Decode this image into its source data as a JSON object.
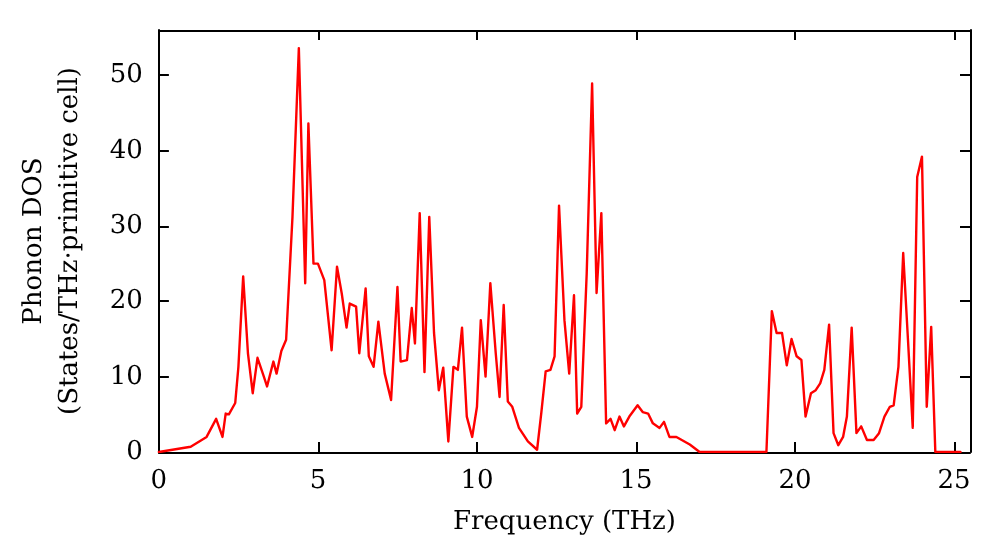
{
  "chart_data": {
    "type": "line",
    "xlabel": "Frequency (THz)",
    "ylabel": "Phonon DOS\n(States/THz·primitive cell)",
    "xlim": [
      0,
      25.5
    ],
    "xticks": [
      0,
      5,
      10,
      15,
      20,
      25
    ],
    "ylim": [
      0,
      56
    ],
    "yticks": [
      0,
      10,
      20,
      30,
      40,
      50
    ],
    "grid": false,
    "marker": "none",
    "line_style": "solid",
    "series": [
      {
        "color": "#ff0000",
        "x": [
          0,
          1.0,
          1.5,
          1.8,
          2.0,
          2.1,
          2.2,
          2.4,
          2.5,
          2.65,
          2.8,
          2.95,
          3.1,
          3.3,
          3.4,
          3.6,
          3.7,
          3.85,
          4.0,
          4.2,
          4.4,
          4.6,
          4.7,
          4.86,
          5.0,
          5.2,
          5.43,
          5.6,
          5.75,
          5.9,
          6.0,
          6.2,
          6.3,
          6.5,
          6.6,
          6.75,
          6.9,
          7.1,
          7.3,
          7.5,
          7.6,
          7.8,
          7.95,
          8.05,
          8.2,
          8.35,
          8.5,
          8.65,
          8.8,
          8.94,
          9.1,
          9.26,
          9.4,
          9.53,
          9.68,
          9.85,
          10.0,
          10.12,
          10.27,
          10.42,
          10.59,
          10.71,
          10.84,
          10.97,
          11.11,
          11.32,
          11.6,
          11.89,
          12.02,
          12.16,
          12.31,
          12.44,
          12.58,
          12.75,
          12.9,
          13.05,
          13.15,
          13.28,
          13.45,
          13.62,
          13.76,
          13.91,
          14.06,
          14.2,
          14.33,
          14.48,
          14.62,
          14.79,
          15.05,
          15.21,
          15.38,
          15.53,
          15.74,
          15.88,
          16.05,
          16.27,
          16.69,
          17.0,
          19.1,
          19.27,
          19.42,
          19.59,
          19.74,
          19.89,
          20.05,
          20.2,
          20.33,
          20.5,
          20.65,
          20.79,
          20.92,
          21.07,
          21.21,
          21.36,
          21.51,
          21.63,
          21.78,
          21.93,
          22.08,
          22.26,
          22.47,
          22.64,
          22.81,
          22.98,
          23.1,
          23.25,
          23.4,
          23.55,
          23.7,
          23.84,
          23.99,
          24.14,
          24.28,
          24.41,
          25.2
        ],
        "values": [
          0,
          0.7,
          2,
          4.4,
          2,
          5.1,
          5,
          6.5,
          11.3,
          23.3,
          13.1,
          7.8,
          12.5,
          10,
          8.7,
          12,
          10.4,
          13.4,
          14.9,
          31.2,
          53.6,
          22.4,
          43.6,
          25,
          25,
          22.8,
          13.5,
          24.6,
          21,
          16.5,
          19.7,
          19.3,
          13.1,
          21.7,
          12.7,
          11.3,
          17.3,
          10.4,
          6.9,
          21.9,
          12,
          12.2,
          19.1,
          14.4,
          31.7,
          10.6,
          31.2,
          15.8,
          8.2,
          11.2,
          1.4,
          11.3,
          10.9,
          16.5,
          4.7,
          2,
          6,
          17.5,
          10,
          22.4,
          13.1,
          7.3,
          19.5,
          6.7,
          6,
          3.2,
          1.4,
          0.3,
          5.1,
          10.7,
          10.9,
          12.7,
          32.7,
          17.5,
          10.4,
          20.8,
          5.1,
          6,
          23.7,
          48.9,
          21.1,
          31.7,
          3.8,
          4.4,
          2.9,
          4.7,
          3.4,
          4.7,
          6.2,
          5.3,
          5.1,
          3.8,
          3.2,
          4,
          2,
          2,
          1,
          0,
          0,
          18.7,
          15.8,
          15.8,
          11.5,
          15,
          12.7,
          12.2,
          4.7,
          7.8,
          8.2,
          9.1,
          10.9,
          16.9,
          2.5,
          0.9,
          2,
          4.7,
          16.5,
          2.5,
          3.4,
          1.6,
          1.6,
          2.5,
          4.7,
          6,
          6.2,
          11.3,
          26.4,
          14.9,
          3.2,
          36.5,
          39.2,
          6,
          16.6,
          0,
          0
        ]
      }
    ]
  }
}
